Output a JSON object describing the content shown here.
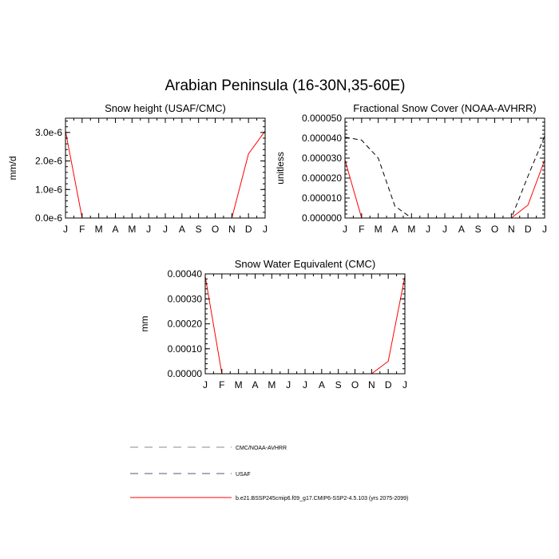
{
  "title": "Arabian Peninsula (16-30N,35-60E)",
  "colors": {
    "model": "#ff0000",
    "obs_cmc_noaa": "#000000",
    "obs_usaf": "#000080",
    "legend_cmc_noaa": "#888888",
    "legend_usaf": "#555577"
  },
  "legend": {
    "items": [
      {
        "label": "CMC/NOAA-AVHRR",
        "style": "dashed",
        "color": "#888888"
      },
      {
        "label": "USAF",
        "style": "dashed",
        "color": "#555577"
      },
      {
        "label": "b.e21.BSSP245cmip6.f09_g17.CMIP6-SSP2-4.5.103 (yrs 2075-2099)",
        "style": "solid",
        "color": "#ff0000"
      }
    ]
  },
  "chart_data": [
    {
      "type": "line",
      "title": "Snow height (USAF/CMC)",
      "ylabel": "mm/d",
      "xlabel": "",
      "categories": [
        "J",
        "F",
        "M",
        "A",
        "M",
        "J",
        "J",
        "A",
        "S",
        "O",
        "N",
        "D",
        "J"
      ],
      "ylim": [
        0,
        3.5e-06
      ],
      "yticks": [
        0,
        1e-06,
        2e-06,
        3e-06
      ],
      "ytick_labels": [
        "0.0e-6",
        "1.0e-6",
        "2.0e-6",
        "3.0e-6"
      ],
      "series": [
        {
          "role": "model",
          "style": "solid",
          "color": "#ff0000",
          "values": [
            3.05e-06,
            0,
            0,
            0,
            0,
            0,
            0,
            0,
            0,
            0,
            0,
            2.25e-06,
            3.05e-06
          ]
        },
        {
          "role": "obs",
          "style": "dashed",
          "color": "#000080",
          "values": [
            0,
            0,
            0,
            0,
            0,
            0,
            0,
            0,
            0,
            0,
            0,
            0,
            0
          ]
        }
      ]
    },
    {
      "type": "line",
      "title": "Fractional Snow Cover (NOAA-AVHRR)",
      "ylabel": "unitless",
      "xlabel": "",
      "categories": [
        "J",
        "F",
        "M",
        "A",
        "M",
        "J",
        "J",
        "A",
        "S",
        "O",
        "N",
        "D",
        "J"
      ],
      "ylim": [
        0,
        5e-05
      ],
      "yticks": [
        0,
        1e-05,
        2e-05,
        3e-05,
        4e-05,
        5e-05
      ],
      "ytick_labels": [
        "0.000000",
        "0.000010",
        "0.000020",
        "0.000030",
        "0.000040",
        "0.000050"
      ],
      "series": [
        {
          "role": "obs",
          "style": "dashed",
          "color": "#000000",
          "values": [
            4.05e-05,
            3.9e-05,
            3e-05,
            6e-06,
            0,
            0,
            0,
            0,
            0,
            0,
            0,
            2.1e-05,
            4.1e-05
          ]
        },
        {
          "role": "model",
          "style": "solid",
          "color": "#ff0000",
          "values": [
            2.9e-05,
            0,
            0,
            0,
            0,
            0,
            0,
            0,
            0,
            0,
            0,
            6.5e-06,
            2.9e-05
          ]
        }
      ]
    },
    {
      "type": "line",
      "title": "Snow Water Equivalent (CMC)",
      "ylabel": "mm",
      "xlabel": "",
      "categories": [
        "J",
        "F",
        "M",
        "A",
        "M",
        "J",
        "J",
        "A",
        "S",
        "O",
        "N",
        "D",
        "J"
      ],
      "ylim": [
        0,
        0.0004
      ],
      "yticks": [
        0,
        0.0001,
        0.0002,
        0.0003,
        0.0004
      ],
      "ytick_labels": [
        "0.00000",
        "0.00010",
        "0.00020",
        "0.00030",
        "0.00040"
      ],
      "series": [
        {
          "role": "model",
          "style": "solid",
          "color": "#ff0000",
          "values": [
            0.00039,
            0,
            0,
            0,
            0,
            0,
            0,
            0,
            0,
            0,
            0,
            5e-05,
            0.00039
          ]
        },
        {
          "role": "obs",
          "style": "dashed",
          "color": "#000000",
          "values": [
            0,
            0,
            0,
            0,
            0,
            0,
            0,
            0,
            0,
            0,
            0,
            0,
            0
          ]
        }
      ]
    }
  ]
}
